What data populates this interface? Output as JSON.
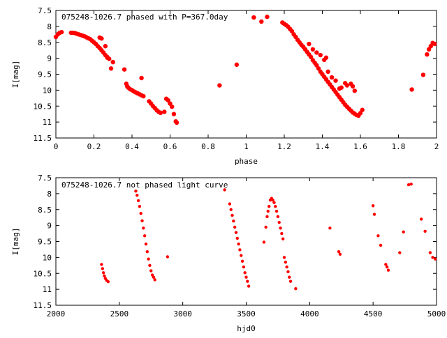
{
  "chart_data": [
    {
      "type": "scatter",
      "title": "075248-1026.7 phased with P=367.0day",
      "xlabel": "phase",
      "ylabel": "I[mag]",
      "xlim": [
        0,
        2
      ],
      "ylim": [
        11.5,
        7.5
      ],
      "y_inverted": true,
      "grid": false,
      "marker_color": "#ff0000",
      "xticks": [
        "0",
        "0.2",
        "0.4",
        "0.6",
        "0.8",
        "1",
        "1.2",
        "1.4",
        "1.6",
        "1.8",
        "2"
      ],
      "xtick_values": [
        0,
        0.2,
        0.4,
        0.6,
        0.8,
        1.0,
        1.2,
        1.4,
        1.6,
        1.8,
        2.0
      ],
      "yticks": [
        "7.5",
        "8",
        "8.5",
        "9",
        "9.5",
        "10",
        "10.5",
        "11",
        "11.5"
      ],
      "ytick_values": [
        7.5,
        8,
        8.5,
        9,
        9.5,
        10,
        10.5,
        11,
        11.5
      ],
      "points": [
        [
          0.0,
          8.33
        ],
        [
          0.01,
          8.25
        ],
        [
          0.02,
          8.2
        ],
        [
          0.03,
          8.18
        ],
        [
          0.08,
          8.2
        ],
        [
          0.09,
          8.2
        ],
        [
          0.1,
          8.21
        ],
        [
          0.11,
          8.23
        ],
        [
          0.12,
          8.25
        ],
        [
          0.13,
          8.27
        ],
        [
          0.14,
          8.29
        ],
        [
          0.15,
          8.31
        ],
        [
          0.16,
          8.34
        ],
        [
          0.17,
          8.37
        ],
        [
          0.18,
          8.4
        ],
        [
          0.19,
          8.45
        ],
        [
          0.2,
          8.5
        ],
        [
          0.21,
          8.55
        ],
        [
          0.22,
          8.62
        ],
        [
          0.23,
          8.68
        ],
        [
          0.24,
          8.75
        ],
        [
          0.25,
          8.82
        ],
        [
          0.26,
          8.9
        ],
        [
          0.27,
          8.96
        ],
        [
          0.28,
          9.02
        ],
        [
          0.3,
          9.12
        ],
        [
          0.23,
          8.35
        ],
        [
          0.24,
          8.38
        ],
        [
          0.26,
          8.62
        ],
        [
          0.27,
          8.98
        ],
        [
          0.29,
          9.32
        ],
        [
          0.36,
          9.35
        ],
        [
          0.37,
          9.8
        ],
        [
          0.375,
          9.88
        ],
        [
          0.38,
          9.92
        ],
        [
          0.39,
          9.97
        ],
        [
          0.4,
          10.0
        ],
        [
          0.41,
          10.04
        ],
        [
          0.42,
          10.07
        ],
        [
          0.43,
          10.1
        ],
        [
          0.44,
          10.13
        ],
        [
          0.45,
          10.16
        ],
        [
          0.46,
          10.19
        ],
        [
          0.45,
          9.62
        ],
        [
          0.49,
          10.35
        ],
        [
          0.5,
          10.42
        ],
        [
          0.51,
          10.5
        ],
        [
          0.52,
          10.56
        ],
        [
          0.53,
          10.63
        ],
        [
          0.54,
          10.68
        ],
        [
          0.55,
          10.71
        ],
        [
          0.57,
          10.68
        ],
        [
          0.58,
          10.27
        ],
        [
          0.59,
          10.32
        ],
        [
          0.6,
          10.42
        ],
        [
          0.61,
          10.52
        ],
        [
          0.62,
          10.75
        ],
        [
          0.63,
          10.98
        ],
        [
          0.635,
          11.02
        ],
        [
          0.86,
          9.85
        ],
        [
          0.95,
          9.2
        ],
        [
          1.04,
          7.72
        ],
        [
          1.08,
          7.85
        ],
        [
          1.11,
          7.7
        ],
        [
          1.19,
          7.88
        ],
        [
          1.2,
          7.92
        ],
        [
          1.21,
          7.96
        ],
        [
          1.22,
          8.01
        ],
        [
          1.23,
          8.08
        ],
        [
          1.24,
          8.15
        ],
        [
          1.25,
          8.25
        ],
        [
          1.26,
          8.33
        ],
        [
          1.27,
          8.42
        ],
        [
          1.28,
          8.5
        ],
        [
          1.29,
          8.58
        ],
        [
          1.3,
          8.64
        ],
        [
          1.31,
          8.72
        ],
        [
          1.32,
          8.8
        ],
        [
          1.33,
          8.88
        ],
        [
          1.34,
          8.96
        ],
        [
          1.35,
          9.06
        ],
        [
          1.36,
          9.14
        ],
        [
          1.37,
          9.22
        ],
        [
          1.38,
          9.32
        ],
        [
          1.39,
          9.42
        ],
        [
          1.4,
          9.5
        ],
        [
          1.41,
          9.58
        ],
        [
          1.42,
          9.66
        ],
        [
          1.43,
          9.74
        ],
        [
          1.44,
          9.82
        ],
        [
          1.45,
          9.9
        ],
        [
          1.46,
          9.98
        ],
        [
          1.47,
          10.06
        ],
        [
          1.48,
          10.14
        ],
        [
          1.49,
          10.22
        ],
        [
          1.5,
          10.3
        ],
        [
          1.51,
          10.38
        ],
        [
          1.52,
          10.46
        ],
        [
          1.53,
          10.52
        ],
        [
          1.54,
          10.58
        ],
        [
          1.55,
          10.64
        ],
        [
          1.56,
          10.7
        ],
        [
          1.57,
          10.74
        ],
        [
          1.58,
          10.78
        ],
        [
          1.59,
          10.8
        ],
        [
          1.6,
          10.72
        ],
        [
          1.61,
          10.62
        ],
        [
          1.33,
          8.55
        ],
        [
          1.35,
          8.72
        ],
        [
          1.37,
          8.82
        ],
        [
          1.39,
          8.9
        ],
        [
          1.41,
          9.05
        ],
        [
          1.42,
          8.98
        ],
        [
          1.43,
          9.42
        ],
        [
          1.45,
          9.6
        ],
        [
          1.47,
          9.7
        ],
        [
          1.49,
          9.95
        ],
        [
          1.5,
          9.92
        ],
        [
          1.52,
          9.78
        ],
        [
          1.53,
          9.85
        ],
        [
          1.55,
          9.8
        ],
        [
          1.56,
          9.88
        ],
        [
          1.57,
          10.02
        ],
        [
          1.87,
          9.98
        ],
        [
          1.93,
          9.52
        ],
        [
          1.95,
          8.88
        ],
        [
          1.96,
          8.72
        ],
        [
          1.97,
          8.62
        ],
        [
          1.98,
          8.52
        ],
        [
          1.99,
          8.55
        ]
      ]
    },
    {
      "type": "scatter",
      "title": "075248-1026.7 not phased light curve",
      "xlabel": "hjd0",
      "ylabel": "I[mag]",
      "xlim": [
        2000,
        5000
      ],
      "ylim": [
        11.5,
        7.5
      ],
      "y_inverted": true,
      "grid": false,
      "marker_color": "#ff0000",
      "xticks": [
        "2000",
        "2500",
        "3000",
        "3500",
        "4000",
        "4500",
        "5000"
      ],
      "xtick_values": [
        2000,
        2500,
        3000,
        3500,
        4000,
        4500,
        5000
      ],
      "yticks": [
        "7.5",
        "8",
        "8.5",
        "9",
        "9.5",
        "10",
        "10.5",
        "11",
        "11.5"
      ],
      "ytick_values": [
        7.5,
        8,
        8.5,
        9,
        9.5,
        10,
        10.5,
        11,
        11.5
      ],
      "points": [
        [
          2360,
          10.22
        ],
        [
          2368,
          10.35
        ],
        [
          2375,
          10.48
        ],
        [
          2382,
          10.58
        ],
        [
          2390,
          10.66
        ],
        [
          2400,
          10.72
        ],
        [
          2412,
          10.76
        ],
        [
          2630,
          7.92
        ],
        [
          2640,
          8.05
        ],
        [
          2650,
          8.22
        ],
        [
          2660,
          8.4
        ],
        [
          2670,
          8.62
        ],
        [
          2680,
          8.85
        ],
        [
          2690,
          9.08
        ],
        [
          2700,
          9.32
        ],
        [
          2710,
          9.58
        ],
        [
          2720,
          9.82
        ],
        [
          2730,
          10.05
        ],
        [
          2740,
          10.25
        ],
        [
          2750,
          10.42
        ],
        [
          2760,
          10.55
        ],
        [
          2770,
          10.62
        ],
        [
          2780,
          10.7
        ],
        [
          2880,
          9.98
        ],
        [
          3330,
          7.88
        ],
        [
          3370,
          8.32
        ],
        [
          3380,
          8.5
        ],
        [
          3390,
          8.68
        ],
        [
          3400,
          8.86
        ],
        [
          3410,
          9.05
        ],
        [
          3420,
          9.22
        ],
        [
          3430,
          9.4
        ],
        [
          3440,
          9.58
        ],
        [
          3450,
          9.76
        ],
        [
          3460,
          9.94
        ],
        [
          3470,
          10.12
        ],
        [
          3480,
          10.3
        ],
        [
          3490,
          10.48
        ],
        [
          3500,
          10.62
        ],
        [
          3510,
          10.75
        ],
        [
          3520,
          10.9
        ],
        [
          3640,
          9.52
        ],
        [
          3655,
          9.05
        ],
        [
          3665,
          8.72
        ],
        [
          3672,
          8.55
        ],
        [
          3680,
          8.4
        ],
        [
          3690,
          8.2
        ],
        [
          3700,
          8.15
        ],
        [
          3710,
          8.2
        ],
        [
          3720,
          8.28
        ],
        [
          3730,
          8.4
        ],
        [
          3740,
          8.55
        ],
        [
          3750,
          8.72
        ],
        [
          3760,
          8.9
        ],
        [
          3770,
          9.08
        ],
        [
          3780,
          9.25
        ],
        [
          3790,
          9.42
        ],
        [
          3800,
          10.0
        ],
        [
          3810,
          10.15
        ],
        [
          3820,
          10.3
        ],
        [
          3830,
          10.45
        ],
        [
          3840,
          10.62
        ],
        [
          3850,
          10.75
        ],
        [
          3890,
          10.98
        ],
        [
          4160,
          9.08
        ],
        [
          4230,
          9.82
        ],
        [
          4240,
          9.9
        ],
        [
          4500,
          8.38
        ],
        [
          4510,
          8.65
        ],
        [
          4540,
          9.32
        ],
        [
          4560,
          9.62
        ],
        [
          4600,
          10.22
        ],
        [
          4610,
          10.3
        ],
        [
          4620,
          10.4
        ],
        [
          4710,
          9.85
        ],
        [
          4740,
          9.2
        ],
        [
          4780,
          7.72
        ],
        [
          4800,
          7.7
        ],
        [
          4880,
          8.8
        ],
        [
          4910,
          9.18
        ],
        [
          4950,
          9.85
        ],
        [
          4970,
          10.0
        ],
        [
          4990,
          10.05
        ]
      ]
    }
  ]
}
